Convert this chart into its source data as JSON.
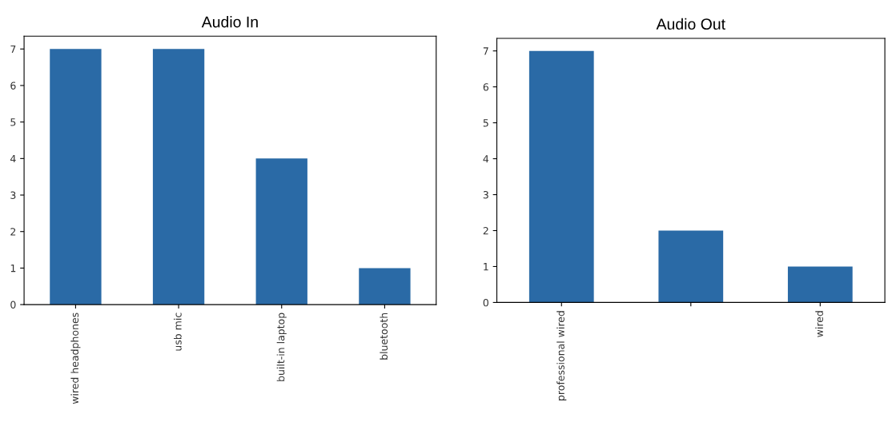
{
  "chart_data": [
    {
      "type": "bar",
      "title": "Audio In",
      "categories": [
        "wired headphones",
        "usb mic",
        "built-in laptop",
        "bluetooth"
      ],
      "values": [
        7,
        7,
        4,
        1
      ],
      "color": "#2a6aa6",
      "ylim": [
        0,
        7.35
      ],
      "yticks": [
        0,
        1,
        2,
        3,
        4,
        5,
        6,
        7
      ],
      "grid": false,
      "legend": false
    },
    {
      "type": "bar",
      "title": "Audio Out",
      "categories": [
        "professional wired",
        null,
        "wired"
      ],
      "values": [
        7,
        2,
        1
      ],
      "color": "#2a6aa6",
      "ylim": [
        0,
        7.35
      ],
      "yticks": [
        0,
        1,
        2,
        3,
        4,
        5,
        6,
        7
      ],
      "grid": false,
      "legend": false
    }
  ]
}
